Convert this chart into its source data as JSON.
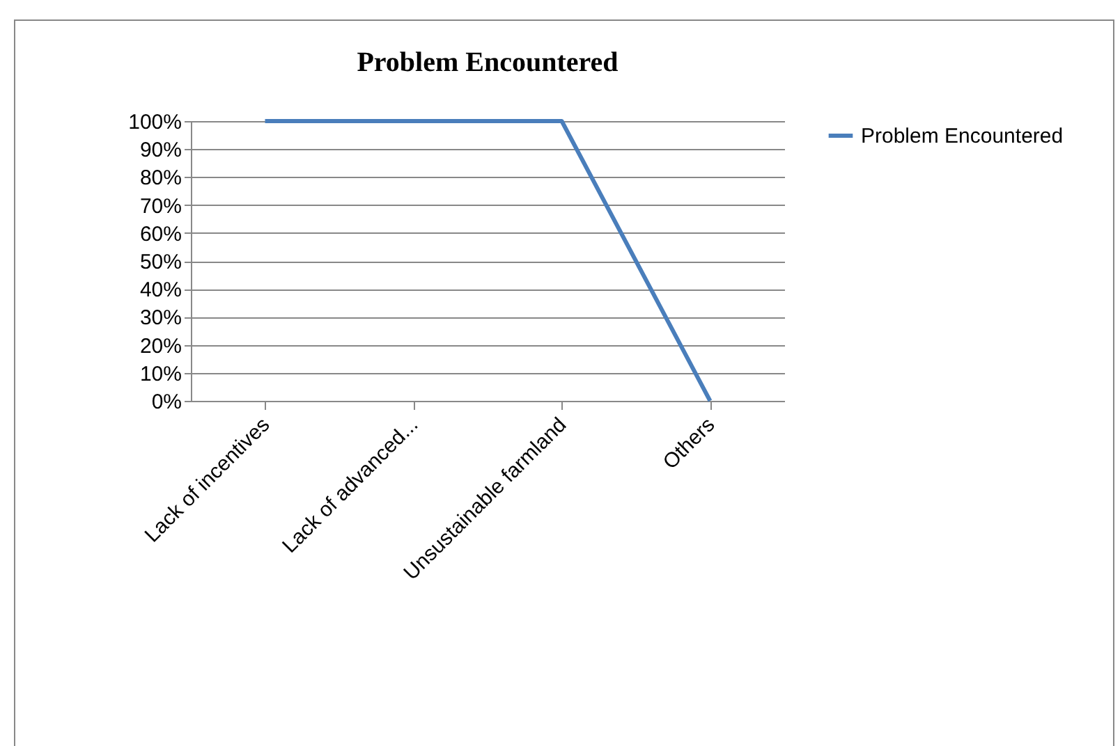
{
  "chart_data": {
    "type": "line",
    "title": "Problem Encountered",
    "categories": [
      "Lack of incentives",
      "Lack of advanced...",
      "Unsustainable farmland",
      "Others"
    ],
    "series": [
      {
        "name": "Problem Encountered",
        "color": "#4a7ebb",
        "values": [
          100,
          100,
          100,
          0
        ]
      }
    ],
    "ylim": [
      0,
      100
    ],
    "yticks": [
      {
        "value": 0,
        "label": "0%"
      },
      {
        "value": 10,
        "label": "10%"
      },
      {
        "value": 20,
        "label": "20%"
      },
      {
        "value": 30,
        "label": "30%"
      },
      {
        "value": 40,
        "label": "40%"
      },
      {
        "value": 50,
        "label": "50%"
      },
      {
        "value": 60,
        "label": "60%"
      },
      {
        "value": 70,
        "label": "70%"
      },
      {
        "value": 80,
        "label": "80%"
      },
      {
        "value": 90,
        "label": "90%"
      },
      {
        "value": 100,
        "label": "100%"
      }
    ],
    "grid": "y",
    "legend": "right",
    "marker": "none",
    "line_style": "solid"
  }
}
